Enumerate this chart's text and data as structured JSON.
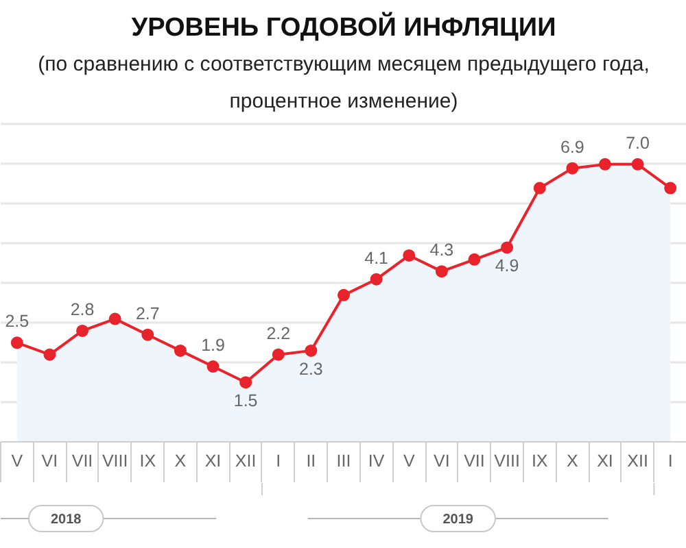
{
  "chart_data": {
    "type": "area",
    "title": "УРОВЕНЬ ГОДОВОЙ ИНФЛЯЦИИ",
    "subtitle": "(по сравнению с соответствующим месяцем предыдущего года, процентное изменение)",
    "categories": [
      "V",
      "VI",
      "VII",
      "VIII",
      "IX",
      "X",
      "XI",
      "XII",
      "I",
      "II",
      "III",
      "IV",
      "V",
      "VI",
      "VII",
      "VIII",
      "IX",
      "X",
      "XI",
      "XII",
      "I"
    ],
    "tick_labels": "x",
    "grid": "y",
    "marker": "circle",
    "series": [
      {
        "color": "#e8232b",
        "values": [
          2.5,
          2.2,
          2.8,
          3.1,
          2.7,
          2.3,
          1.9,
          1.5,
          2.2,
          2.3,
          3.7,
          4.1,
          4.7,
          4.3,
          4.6,
          4.9,
          6.4,
          6.9,
          7.0,
          7.0,
          6.4
        ],
        "value_labels": [
          "2.5",
          null,
          "2.8",
          null,
          "2.7",
          null,
          "1.9",
          "1.5",
          "2.2",
          "2.3",
          null,
          "4.1",
          null,
          "4.3",
          null,
          "4.9",
          null,
          "6.9",
          null,
          "7.0",
          null
        ]
      }
    ],
    "annotations": [
      "2018",
      "2019"
    ]
  }
}
